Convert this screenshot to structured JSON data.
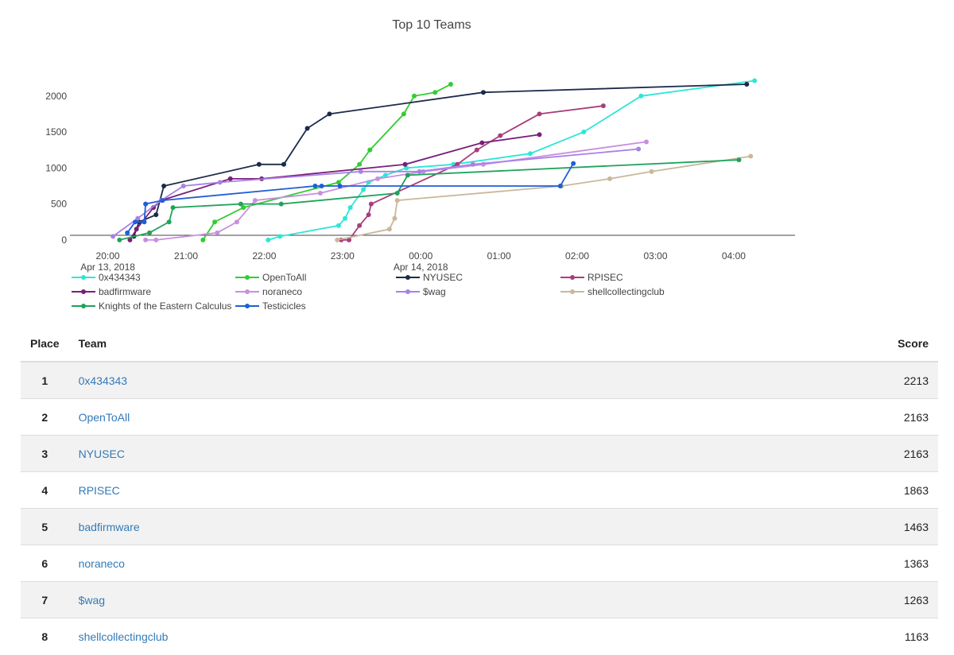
{
  "chart_data": {
    "type": "line",
    "title": "Top 10 Teams",
    "xlabel": "",
    "ylabel": "",
    "xlim": [
      "2018-04-13T19:31",
      "2018-04-14T04:47"
    ],
    "ylim": [
      -200,
      2450
    ],
    "grid": false,
    "legend_position": "bottom",
    "x_ticks": [
      {
        "value": "2018-04-13T20:00",
        "label": "20:00",
        "sublabel": "Apr 13, 2018"
      },
      {
        "value": "2018-04-13T21:00",
        "label": "21:00",
        "sublabel": ""
      },
      {
        "value": "2018-04-13T22:00",
        "label": "22:00",
        "sublabel": ""
      },
      {
        "value": "2018-04-13T23:00",
        "label": "23:00",
        "sublabel": ""
      },
      {
        "value": "2018-04-14T00:00",
        "label": "00:00",
        "sublabel": "Apr 14, 2018"
      },
      {
        "value": "2018-04-14T01:00",
        "label": "01:00",
        "sublabel": ""
      },
      {
        "value": "2018-04-14T02:00",
        "label": "02:00",
        "sublabel": ""
      },
      {
        "value": "2018-04-14T03:00",
        "label": "03:00",
        "sublabel": ""
      },
      {
        "value": "2018-04-14T04:00",
        "label": "04:00",
        "sublabel": ""
      }
    ],
    "y_ticks": [
      0,
      500,
      1000,
      1500,
      2000
    ],
    "series": [
      {
        "name": "0x434343",
        "color": "#2ee6d6",
        "points": [
          [
            "2018-04-13T22:03",
            0
          ],
          [
            "2018-04-13T22:12",
            50
          ],
          [
            "2018-04-13T22:57",
            200
          ],
          [
            "2018-04-13T23:02",
            300
          ],
          [
            "2018-04-13T23:06",
            450
          ],
          [
            "2018-04-13T23:16",
            700
          ],
          [
            "2018-04-13T23:20",
            800
          ],
          [
            "2018-04-13T23:33",
            900
          ],
          [
            "2018-04-13T23:49",
            1000
          ],
          [
            "2018-04-14T00:25",
            1050
          ],
          [
            "2018-04-14T01:24",
            1200
          ],
          [
            "2018-04-14T02:05",
            1500
          ],
          [
            "2018-04-14T02:49",
            2000
          ],
          [
            "2018-04-14T04:16",
            2213
          ]
        ]
      },
      {
        "name": "OpenToAll",
        "color": "#33cc33",
        "points": [
          [
            "2018-04-13T21:13",
            0
          ],
          [
            "2018-04-13T21:22",
            250
          ],
          [
            "2018-04-13T21:44",
            450
          ],
          [
            "2018-04-13T22:57",
            800
          ],
          [
            "2018-04-13T23:13",
            1050
          ],
          [
            "2018-04-13T23:21",
            1250
          ],
          [
            "2018-04-13T23:47",
            1750
          ],
          [
            "2018-04-13T23:55",
            2000
          ],
          [
            "2018-04-14T00:11",
            2050
          ],
          [
            "2018-04-14T00:23",
            2163
          ]
        ]
      },
      {
        "name": "NYUSEC",
        "color": "#1c2b4a",
        "points": [
          [
            "2018-04-13T20:20",
            50
          ],
          [
            "2018-04-13T20:24",
            250
          ],
          [
            "2018-04-13T20:37",
            350
          ],
          [
            "2018-04-13T20:43",
            750
          ],
          [
            "2018-04-13T21:56",
            1050
          ],
          [
            "2018-04-13T22:15",
            1050
          ],
          [
            "2018-04-13T22:33",
            1550
          ],
          [
            "2018-04-13T22:50",
            1750
          ],
          [
            "2018-04-14T00:48",
            2050
          ],
          [
            "2018-04-14T04:10",
            2163
          ]
        ]
      },
      {
        "name": "RPISEC",
        "color": "#a83e7c",
        "points": [
          [
            "2018-04-13T22:59",
            0
          ],
          [
            "2018-04-13T23:05",
            0
          ],
          [
            "2018-04-13T23:13",
            200
          ],
          [
            "2018-04-13T23:20",
            350
          ],
          [
            "2018-04-13T23:22",
            500
          ],
          [
            "2018-04-14T00:28",
            1050
          ],
          [
            "2018-04-14T00:43",
            1250
          ],
          [
            "2018-04-14T01:01",
            1450
          ],
          [
            "2018-04-14T01:31",
            1750
          ],
          [
            "2018-04-14T02:20",
            1863
          ]
        ]
      },
      {
        "name": "badfirmware",
        "color": "#7a1f7a",
        "points": [
          [
            "2018-04-13T20:17",
            0
          ],
          [
            "2018-04-13T20:22",
            150
          ],
          [
            "2018-04-13T20:35",
            450
          ],
          [
            "2018-04-13T20:41",
            550
          ],
          [
            "2018-04-13T21:34",
            850
          ],
          [
            "2018-04-13T21:58",
            850
          ],
          [
            "2018-04-13T23:48",
            1050
          ],
          [
            "2018-04-14T00:47",
            1350
          ],
          [
            "2018-04-14T01:31",
            1463
          ]
        ]
      },
      {
        "name": "noraneco",
        "color": "#c98ee0",
        "points": [
          [
            "2018-04-13T20:29",
            0
          ],
          [
            "2018-04-13T20:37",
            0
          ],
          [
            "2018-04-13T21:24",
            100
          ],
          [
            "2018-04-13T21:39",
            250
          ],
          [
            "2018-04-13T21:53",
            550
          ],
          [
            "2018-04-13T22:43",
            650
          ],
          [
            "2018-04-13T23:27",
            850
          ],
          [
            "2018-04-14T00:02",
            950
          ],
          [
            "2018-04-14T00:48",
            1050
          ],
          [
            "2018-04-14T02:53",
            1363
          ]
        ]
      },
      {
        "name": "$wag",
        "color": "#a781e8",
        "points": [
          [
            "2018-04-13T20:04",
            50
          ],
          [
            "2018-04-13T20:23",
            300
          ],
          [
            "2018-04-13T20:41",
            550
          ],
          [
            "2018-04-13T20:58",
            750
          ],
          [
            "2018-04-13T21:26",
            800
          ],
          [
            "2018-04-13T23:14",
            950
          ],
          [
            "2018-04-13T23:59",
            950
          ],
          [
            "2018-04-14T00:40",
            1050
          ],
          [
            "2018-04-14T02:47",
            1263
          ]
        ]
      },
      {
        "name": "shellcollectingclub",
        "color": "#c9b89a",
        "points": [
          [
            "2018-04-13T22:56",
            0
          ],
          [
            "2018-04-13T23:36",
            150
          ],
          [
            "2018-04-13T23:40",
            300
          ],
          [
            "2018-04-13T23:42",
            550
          ],
          [
            "2018-04-14T01:48",
            750
          ],
          [
            "2018-04-14T02:25",
            850
          ],
          [
            "2018-04-14T02:57",
            950
          ],
          [
            "2018-04-14T04:13",
            1163
          ]
        ]
      },
      {
        "name": "Knights of the Eastern Calculus",
        "color": "#1fa35b",
        "points": [
          [
            "2018-04-13T20:09",
            0
          ],
          [
            "2018-04-13T20:32",
            100
          ],
          [
            "2018-04-13T20:47",
            250
          ],
          [
            "2018-04-13T20:50",
            450
          ],
          [
            "2018-04-13T21:42",
            500
          ],
          [
            "2018-04-13T22:13",
            500
          ],
          [
            "2018-04-13T23:42",
            650
          ],
          [
            "2018-04-13T23:50",
            900
          ],
          [
            "2018-04-14T04:04",
            1113
          ]
        ]
      },
      {
        "name": "Testicicles",
        "color": "#1f5fd6",
        "points": [
          [
            "2018-04-13T20:15",
            100
          ],
          [
            "2018-04-13T20:21",
            250
          ],
          [
            "2018-04-13T20:28",
            250
          ],
          [
            "2018-04-13T20:29",
            500
          ],
          [
            "2018-04-13T20:42",
            550
          ],
          [
            "2018-04-13T22:39",
            750
          ],
          [
            "2018-04-13T22:44",
            750
          ],
          [
            "2018-04-13T22:58",
            750
          ],
          [
            "2018-04-14T01:47",
            750
          ],
          [
            "2018-04-14T01:57",
            1063
          ]
        ]
      }
    ]
  },
  "scoreboard": {
    "headers": {
      "place": "Place",
      "team": "Team",
      "score": "Score"
    },
    "rows": [
      {
        "place": "1",
        "team": "0x434343",
        "score": "2213"
      },
      {
        "place": "2",
        "team": "OpenToAll",
        "score": "2163"
      },
      {
        "place": "3",
        "team": "NYUSEC",
        "score": "2163"
      },
      {
        "place": "4",
        "team": "RPISEC",
        "score": "1863"
      },
      {
        "place": "5",
        "team": "badfirmware",
        "score": "1463"
      },
      {
        "place": "6",
        "team": "noraneco",
        "score": "1363"
      },
      {
        "place": "7",
        "team": "$wag",
        "score": "1263"
      },
      {
        "place": "8",
        "team": "shellcollectingclub",
        "score": "1163"
      }
    ]
  }
}
